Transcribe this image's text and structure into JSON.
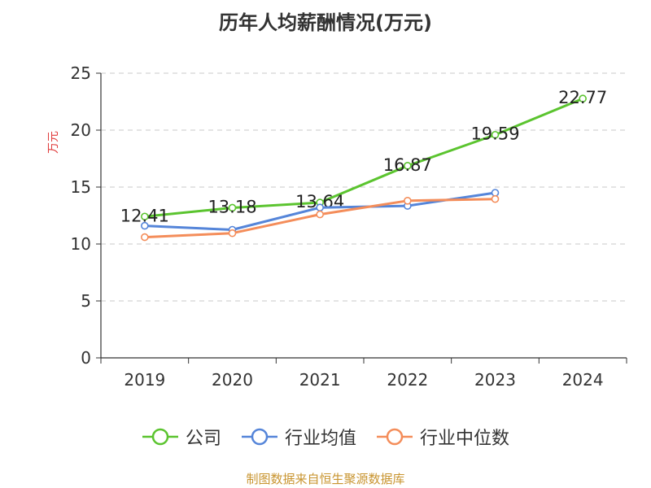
{
  "title": "历年人均薪酬情况(万元)",
  "source": "制图数据来自恒生聚源数据库",
  "chart_data": {
    "type": "line",
    "title": "历年人均薪酬情况(万元)",
    "ylabel": "万元",
    "ylim": [
      0,
      25
    ],
    "yticks": [
      0,
      5,
      10,
      15,
      20,
      25
    ],
    "categories": [
      "2019",
      "2020",
      "2021",
      "2022",
      "2023",
      "2024"
    ],
    "grid": true,
    "legend_position": "bottom",
    "series": [
      {
        "name": "公司",
        "color": "#5bc42f",
        "values": [
          12.41,
          13.18,
          13.64,
          16.87,
          19.59,
          22.77
        ],
        "labels": [
          "12.41",
          "13.18",
          "13.64",
          "16.87",
          "19.59",
          "22.77"
        ]
      },
      {
        "name": "行业均值",
        "color": "#5585d9",
        "values": [
          11.6,
          11.25,
          13.2,
          13.35,
          14.5,
          null
        ],
        "labels": []
      },
      {
        "name": "行业中位数",
        "color": "#f48d5a",
        "values": [
          10.6,
          10.95,
          12.6,
          13.8,
          13.95,
          null
        ],
        "labels": []
      }
    ]
  }
}
